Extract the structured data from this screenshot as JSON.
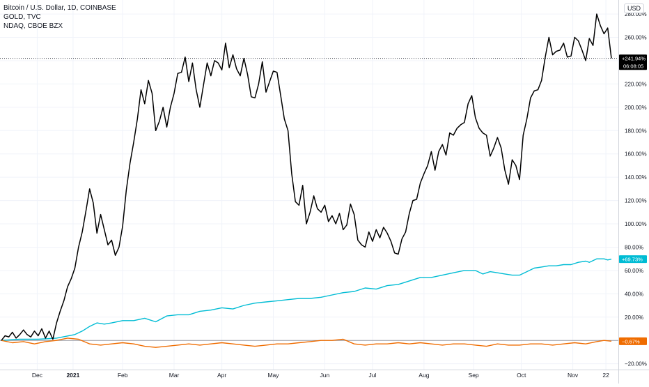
{
  "legend": {
    "line1": "Bitcoin / U.S. Dollar, 1D, COINBASE",
    "line2": "GOLD, TVC",
    "line3": "NDAQ, CBOE BZX"
  },
  "currency_button": "USD",
  "chart_data": {
    "type": "line",
    "x_tick_labels": [
      {
        "label": "Dec",
        "x": 19.5
      },
      {
        "label": "2021",
        "x": 39
      },
      {
        "label": "Feb",
        "x": 66
      },
      {
        "label": "Mar",
        "x": 94
      },
      {
        "label": "Apr",
        "x": 120
      },
      {
        "label": "May",
        "x": 148
      },
      {
        "label": "Jun",
        "x": 176
      },
      {
        "label": "Jul",
        "x": 202
      },
      {
        "label": "Aug",
        "x": 230
      },
      {
        "label": "Sep",
        "x": 257
      },
      {
        "label": "Oct",
        "x": 283
      },
      {
        "label": "Nov",
        "x": 311
      },
      {
        "label": "22",
        "x": 329
      }
    ],
    "y_axis": {
      "unit": "%",
      "ylim": [
        -25,
        292
      ],
      "ticks": [
        -20,
        20,
        40,
        60,
        80,
        100,
        120,
        140,
        160,
        180,
        200,
        220,
        240,
        260,
        280
      ],
      "tick_labels": [
        "−20.00%",
        "20.00%",
        "40.00%",
        "60.00%",
        "80.00%",
        "100.00%",
        "120.00%",
        "140.00%",
        "160.00%",
        "180.00%",
        "200.00%",
        "220.00%",
        "240.00%",
        "260.00%",
        "280.00%"
      ],
      "zero_baseline": 0
    },
    "xlim": [
      0,
      332
    ],
    "grid": true,
    "series": [
      {
        "name": "Bitcoin / U.S. Dollar, 1D, COINBASE",
        "color": "#000000",
        "last_label": "+241.94%",
        "last_value": 241.94,
        "countdown": "06:08:05",
        "points": [
          [
            0,
            0
          ],
          [
            2,
            4
          ],
          [
            4,
            3
          ],
          [
            6,
            7
          ],
          [
            8,
            2
          ],
          [
            10,
            5
          ],
          [
            12,
            9
          ],
          [
            14,
            5
          ],
          [
            16,
            3
          ],
          [
            18,
            8
          ],
          [
            20,
            4
          ],
          [
            22,
            10
          ],
          [
            24,
            2
          ],
          [
            26,
            8
          ],
          [
            28,
            1
          ],
          [
            30,
            15
          ],
          [
            32,
            25
          ],
          [
            34,
            34
          ],
          [
            36,
            46
          ],
          [
            38,
            53
          ],
          [
            40,
            62
          ],
          [
            42,
            80
          ],
          [
            44,
            93
          ],
          [
            46,
            111
          ],
          [
            48,
            130
          ],
          [
            50,
            118
          ],
          [
            52,
            92
          ],
          [
            54,
            108
          ],
          [
            56,
            95
          ],
          [
            58,
            82
          ],
          [
            60,
            86
          ],
          [
            62,
            73
          ],
          [
            64,
            80
          ],
          [
            66,
            98
          ],
          [
            68,
            129
          ],
          [
            70,
            152
          ],
          [
            72,
            170
          ],
          [
            74,
            190
          ],
          [
            76,
            215
          ],
          [
            78,
            203
          ],
          [
            80,
            223
          ],
          [
            82,
            212
          ],
          [
            84,
            180
          ],
          [
            86,
            188
          ],
          [
            88,
            200
          ],
          [
            90,
            183
          ],
          [
            92,
            200
          ],
          [
            94,
            212
          ],
          [
            96,
            229
          ],
          [
            98,
            230
          ],
          [
            100,
            243
          ],
          [
            102,
            222
          ],
          [
            104,
            238
          ],
          [
            106,
            215
          ],
          [
            108,
            200
          ],
          [
            110,
            219
          ],
          [
            112,
            238
          ],
          [
            114,
            227
          ],
          [
            116,
            240
          ],
          [
            118,
            238
          ],
          [
            120,
            232
          ],
          [
            122,
            255
          ],
          [
            124,
            234
          ],
          [
            126,
            245
          ],
          [
            128,
            233
          ],
          [
            130,
            227
          ],
          [
            132,
            242
          ],
          [
            134,
            228
          ],
          [
            136,
            209
          ],
          [
            138,
            208
          ],
          [
            140,
            220
          ],
          [
            142,
            239
          ],
          [
            144,
            213
          ],
          [
            146,
            222
          ],
          [
            148,
            231
          ],
          [
            150,
            230
          ],
          [
            152,
            210
          ],
          [
            154,
            190
          ],
          [
            156,
            180
          ],
          [
            158,
            143
          ],
          [
            160,
            119
          ],
          [
            162,
            116
          ],
          [
            164,
            133
          ],
          [
            166,
            100
          ],
          [
            168,
            110
          ],
          [
            170,
            124
          ],
          [
            172,
            113
          ],
          [
            174,
            110
          ],
          [
            176,
            116
          ],
          [
            178,
            102
          ],
          [
            180,
            107
          ],
          [
            182,
            100
          ],
          [
            184,
            109
          ],
          [
            186,
            95
          ],
          [
            188,
            99
          ],
          [
            190,
            117
          ],
          [
            192,
            108
          ],
          [
            194,
            86
          ],
          [
            196,
            82
          ],
          [
            198,
            80
          ],
          [
            200,
            93
          ],
          [
            202,
            85
          ],
          [
            204,
            95
          ],
          [
            206,
            88
          ],
          [
            208,
            97
          ],
          [
            210,
            92
          ],
          [
            212,
            85
          ],
          [
            214,
            75
          ],
          [
            216,
            74
          ],
          [
            218,
            87
          ],
          [
            220,
            93
          ],
          [
            222,
            109
          ],
          [
            224,
            120
          ],
          [
            226,
            121
          ],
          [
            228,
            135
          ],
          [
            230,
            143
          ],
          [
            232,
            150
          ],
          [
            234,
            162
          ],
          [
            236,
            146
          ],
          [
            238,
            162
          ],
          [
            240,
            168
          ],
          [
            242,
            159
          ],
          [
            244,
            178
          ],
          [
            246,
            176
          ],
          [
            248,
            182
          ],
          [
            250,
            185
          ],
          [
            252,
            187
          ],
          [
            254,
            203
          ],
          [
            256,
            210
          ],
          [
            258,
            191
          ],
          [
            260,
            182
          ],
          [
            262,
            178
          ],
          [
            264,
            176
          ],
          [
            266,
            158
          ],
          [
            268,
            165
          ],
          [
            270,
            174
          ],
          [
            272,
            165
          ],
          [
            274,
            146
          ],
          [
            276,
            134
          ],
          [
            278,
            155
          ],
          [
            280,
            150
          ],
          [
            282,
            138
          ],
          [
            284,
            176
          ],
          [
            286,
            190
          ],
          [
            288,
            208
          ],
          [
            290,
            214
          ],
          [
            292,
            215
          ],
          [
            294,
            223
          ],
          [
            296,
            243
          ],
          [
            298,
            260
          ],
          [
            300,
            245
          ],
          [
            302,
            248
          ],
          [
            304,
            249
          ],
          [
            306,
            255
          ],
          [
            308,
            243
          ],
          [
            310,
            244
          ],
          [
            312,
            260
          ],
          [
            314,
            257
          ],
          [
            316,
            249
          ],
          [
            318,
            240
          ],
          [
            320,
            259
          ],
          [
            322,
            253
          ],
          [
            324,
            280
          ],
          [
            326,
            270
          ],
          [
            328,
            263
          ],
          [
            330,
            268
          ],
          [
            332,
            242
          ]
        ]
      },
      {
        "name": "GOLD, TVC",
        "color": "#00bcd4",
        "last_label": "+69.73%",
        "last_value": 69.73,
        "points": [
          [
            0,
            0
          ],
          [
            10,
            1
          ],
          [
            20,
            1
          ],
          [
            30,
            2
          ],
          [
            40,
            5
          ],
          [
            44,
            8
          ],
          [
            48,
            12
          ],
          [
            52,
            15
          ],
          [
            56,
            14
          ],
          [
            60,
            15
          ],
          [
            66,
            17
          ],
          [
            72,
            17
          ],
          [
            78,
            19
          ],
          [
            84,
            16
          ],
          [
            90,
            21
          ],
          [
            96,
            22
          ],
          [
            102,
            22
          ],
          [
            108,
            25
          ],
          [
            114,
            26
          ],
          [
            120,
            28
          ],
          [
            126,
            27
          ],
          [
            132,
            30
          ],
          [
            138,
            32
          ],
          [
            144,
            33
          ],
          [
            150,
            34
          ],
          [
            156,
            35
          ],
          [
            162,
            36
          ],
          [
            168,
            36
          ],
          [
            174,
            37
          ],
          [
            180,
            39
          ],
          [
            186,
            41
          ],
          [
            192,
            42
          ],
          [
            198,
            45
          ],
          [
            204,
            44
          ],
          [
            210,
            47
          ],
          [
            216,
            48
          ],
          [
            222,
            51
          ],
          [
            228,
            54
          ],
          [
            234,
            54
          ],
          [
            240,
            56
          ],
          [
            246,
            58
          ],
          [
            252,
            60
          ],
          [
            258,
            60
          ],
          [
            262,
            57
          ],
          [
            266,
            59
          ],
          [
            270,
            58
          ],
          [
            274,
            57
          ],
          [
            278,
            56
          ],
          [
            282,
            56
          ],
          [
            286,
            59
          ],
          [
            290,
            62
          ],
          [
            294,
            63
          ],
          [
            298,
            64
          ],
          [
            302,
            64
          ],
          [
            306,
            65
          ],
          [
            310,
            65
          ],
          [
            314,
            67
          ],
          [
            318,
            68
          ],
          [
            320,
            67
          ],
          [
            324,
            70
          ],
          [
            328,
            70
          ],
          [
            330,
            69
          ],
          [
            332,
            69.73
          ]
        ]
      },
      {
        "name": "NDAQ, CBOE BZX",
        "color": "#ef6c00",
        "last_label": "−0.67%",
        "last_value": -0.67,
        "points": [
          [
            0,
            0
          ],
          [
            6,
            -2
          ],
          [
            12,
            -1
          ],
          [
            18,
            -3
          ],
          [
            24,
            -1
          ],
          [
            30,
            0
          ],
          [
            36,
            2
          ],
          [
            42,
            1
          ],
          [
            48,
            -3
          ],
          [
            54,
            -4
          ],
          [
            60,
            -3
          ],
          [
            66,
            -2
          ],
          [
            72,
            -3
          ],
          [
            78,
            -5
          ],
          [
            84,
            -6
          ],
          [
            90,
            -5
          ],
          [
            96,
            -4
          ],
          [
            102,
            -3
          ],
          [
            108,
            -4
          ],
          [
            114,
            -3
          ],
          [
            120,
            -2
          ],
          [
            126,
            -3
          ],
          [
            132,
            -4
          ],
          [
            138,
            -5
          ],
          [
            144,
            -4
          ],
          [
            150,
            -3
          ],
          [
            156,
            -3
          ],
          [
            162,
            -2
          ],
          [
            168,
            -1
          ],
          [
            174,
            0
          ],
          [
            180,
            0
          ],
          [
            186,
            1
          ],
          [
            192,
            -3
          ],
          [
            198,
            -4
          ],
          [
            204,
            -3
          ],
          [
            210,
            -3
          ],
          [
            216,
            -2
          ],
          [
            222,
            -3
          ],
          [
            228,
            -2
          ],
          [
            234,
            -3
          ],
          [
            240,
            -4
          ],
          [
            246,
            -3
          ],
          [
            252,
            -3
          ],
          [
            258,
            -4
          ],
          [
            264,
            -5
          ],
          [
            270,
            -3
          ],
          [
            276,
            -4
          ],
          [
            282,
            -4
          ],
          [
            288,
            -3
          ],
          [
            294,
            -3
          ],
          [
            300,
            -4
          ],
          [
            306,
            -3
          ],
          [
            312,
            -2
          ],
          [
            318,
            -3
          ],
          [
            324,
            -1
          ],
          [
            328,
            0
          ],
          [
            332,
            -0.67
          ]
        ]
      }
    ]
  }
}
